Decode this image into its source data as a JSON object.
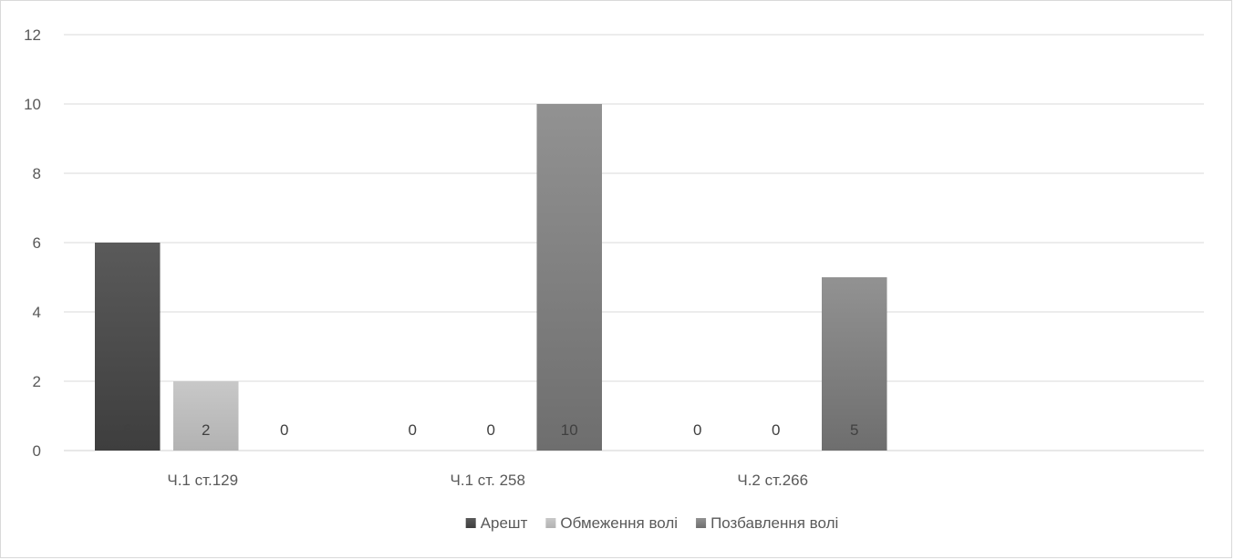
{
  "chart_data": {
    "type": "bar",
    "title": "",
    "xlabel": "",
    "ylabel": "",
    "categories": [
      "Ч.1 ст.129",
      "Ч.1 ст. 258",
      "Ч.2 ст.266",
      ""
    ],
    "series": [
      {
        "name": "Арешт",
        "values": [
          6,
          0,
          0,
          null
        ],
        "color": "#545454"
      },
      {
        "name": "Обмеження волі",
        "values": [
          2,
          0,
          0,
          null
        ],
        "color": "#bfbfbf"
      },
      {
        "name": "Позбавлення волі",
        "values": [
          0,
          10,
          5,
          null
        ],
        "color": "#7f7f7f"
      }
    ],
    "ylim": [
      0,
      12
    ],
    "yticks": [
      0,
      2,
      4,
      6,
      8,
      10,
      12
    ],
    "grid": true,
    "legend_position": "bottom",
    "data_labels": true
  }
}
